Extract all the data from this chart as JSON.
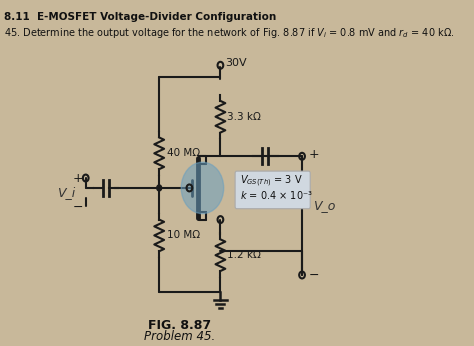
{
  "title_section": "8.11  E-MOSFET Voltage-Divider Configuration",
  "problem_text": "45. Determine the output voltage for the network of Fig. 8.87 if $V_i$ = 0.8 mV and $r_d$ = 40 kΩ.",
  "fig_label": "FIG. 8.87",
  "fig_caption": "Problem 45.",
  "vdd_label": "30V",
  "r1_label": "3.3 kΩ",
  "r_gate_top_label": "40 MΩ",
  "r_gate_bot_label": "10 MΩ",
  "r_source_label": "1.2 kΩ",
  "mosfet_label1": "V_{GS(Th)} = 3 V",
  "mosfet_label2": "k = 0.4 × 10⁻³",
  "vo_label": "V_o",
  "vi_label": "V_i",
  "plus_sign": "+",
  "minus_sign": "−",
  "bg_color": "#c8b89a",
  "circuit_color": "#1a1a1a",
  "mosfet_bubble_color": "#6a9fbf",
  "box_color": "#d0d8e0",
  "title_bold": true
}
